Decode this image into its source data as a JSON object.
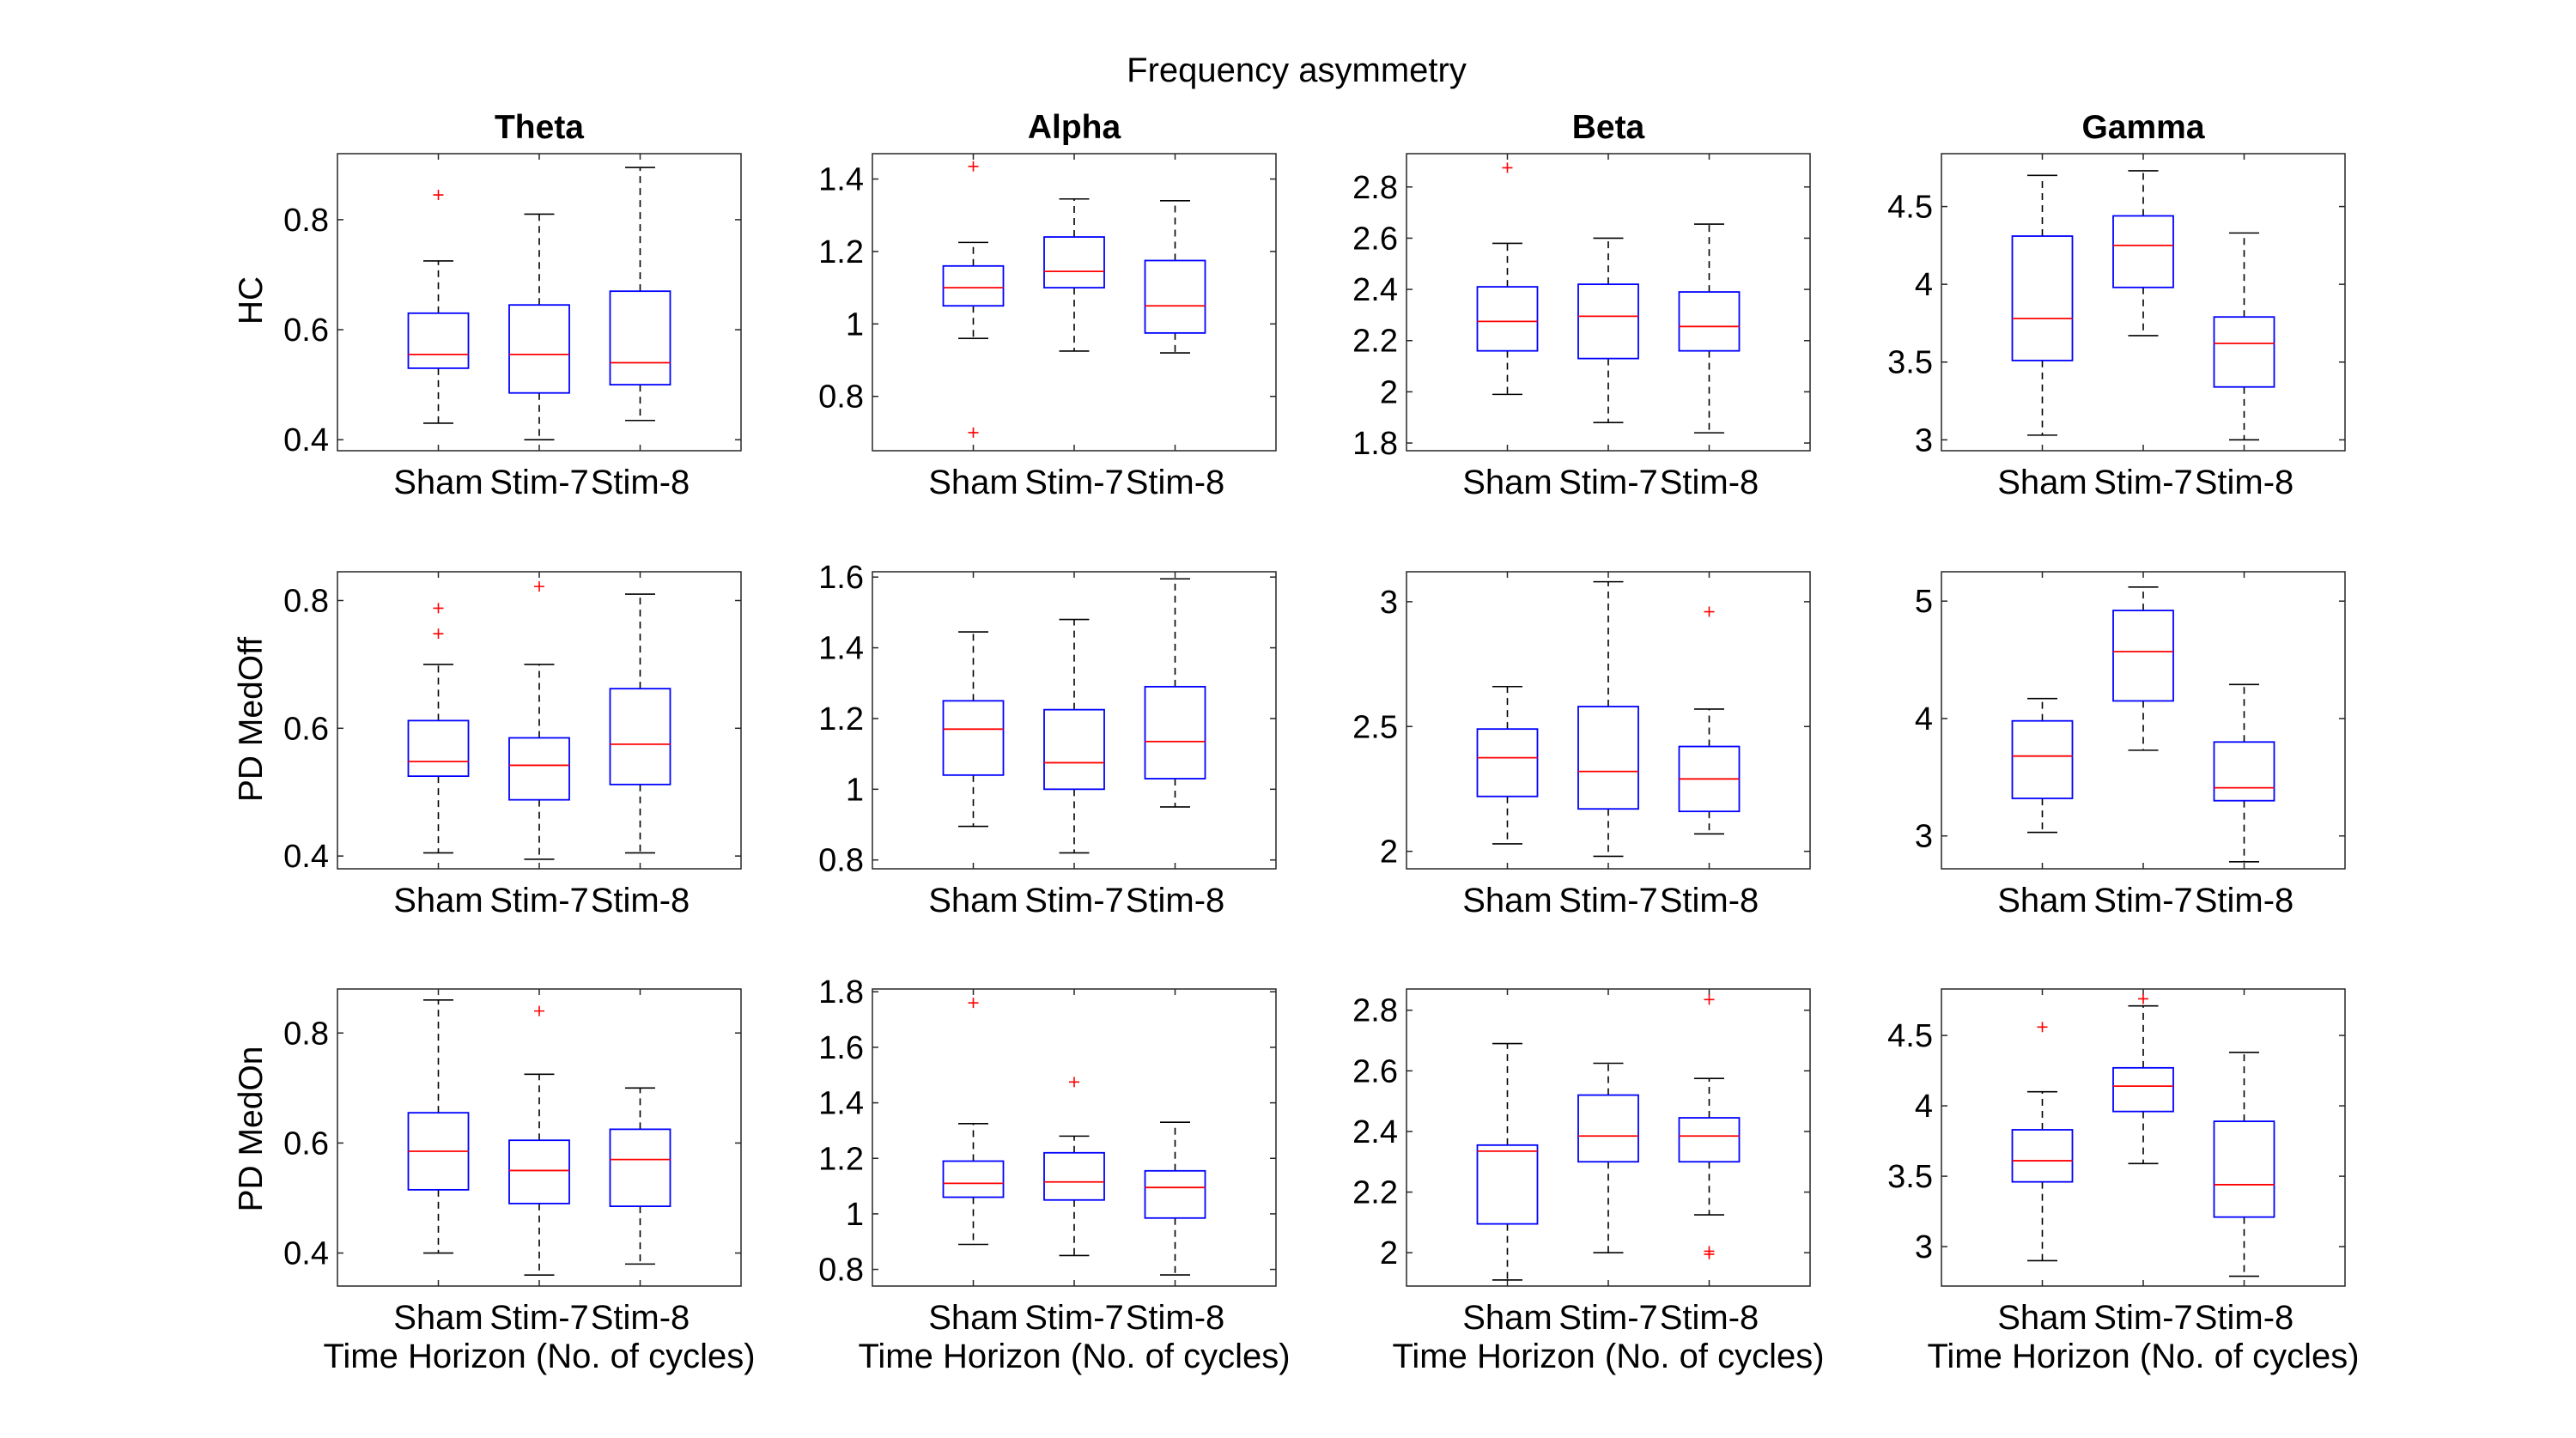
{
  "chart_data": {
    "type": "box",
    "title": "Frequency asymmetry",
    "xlabel": "Time Horizon (No. of cycles)",
    "categories": [
      "Sham",
      "Stim-7",
      "Stim-8"
    ],
    "columns": [
      "Theta",
      "Alpha",
      "Beta",
      "Gamma"
    ],
    "rows": [
      "HC",
      "PD MedOff",
      "PD MedOn"
    ],
    "colors": {
      "box": "#0000ff",
      "median": "#ff0000",
      "whisker": "#000000",
      "outlier": "#ff0000",
      "axes": "#262626"
    },
    "panels": [
      {
        "row": 0,
        "col": 0,
        "ylim": [
          0.38,
          0.92
        ],
        "yticks": [
          0.4,
          0.6,
          0.8
        ],
        "ytick_labels": [
          "0.4",
          "0.6",
          "0.8"
        ],
        "boxes": [
          {
            "category": "Sham",
            "whisker_low": 0.43,
            "q1": 0.53,
            "median": 0.555,
            "q3": 0.63,
            "whisker_high": 0.725,
            "outliers": [
              0.845
            ]
          },
          {
            "category": "Stim-7",
            "whisker_low": 0.4,
            "q1": 0.485,
            "median": 0.555,
            "q3": 0.645,
            "whisker_high": 0.81,
            "outliers": []
          },
          {
            "category": "Stim-8",
            "whisker_low": 0.435,
            "q1": 0.5,
            "median": 0.54,
            "q3": 0.67,
            "whisker_high": 0.895,
            "outliers": []
          }
        ]
      },
      {
        "row": 0,
        "col": 1,
        "ylim": [
          0.65,
          1.47
        ],
        "yticks": [
          0.8,
          1.0,
          1.2,
          1.4
        ],
        "ytick_labels": [
          "0.8",
          "1",
          "1.2",
          "1.4"
        ],
        "boxes": [
          {
            "category": "Sham",
            "whisker_low": 0.96,
            "q1": 1.05,
            "median": 1.1,
            "q3": 1.16,
            "whisker_high": 1.225,
            "outliers": [
              1.435,
              0.7
            ]
          },
          {
            "category": "Stim-7",
            "whisker_low": 0.925,
            "q1": 1.1,
            "median": 1.145,
            "q3": 1.24,
            "whisker_high": 1.345,
            "outliers": []
          },
          {
            "category": "Stim-8",
            "whisker_low": 0.92,
            "q1": 0.975,
            "median": 1.05,
            "q3": 1.175,
            "whisker_high": 1.34,
            "outliers": []
          }
        ]
      },
      {
        "row": 0,
        "col": 2,
        "ylim": [
          1.77,
          2.93
        ],
        "yticks": [
          1.8,
          2.0,
          2.2,
          2.4,
          2.6,
          2.8
        ],
        "ytick_labels": [
          "1.8",
          "2",
          "2.2",
          "2.4",
          "2.6",
          "2.8"
        ],
        "boxes": [
          {
            "category": "Sham",
            "whisker_low": 1.99,
            "q1": 2.16,
            "median": 2.275,
            "q3": 2.41,
            "whisker_high": 2.58,
            "outliers": [
              2.875
            ]
          },
          {
            "category": "Stim-7",
            "whisker_low": 1.88,
            "q1": 2.13,
            "median": 2.295,
            "q3": 2.42,
            "whisker_high": 2.6,
            "outliers": []
          },
          {
            "category": "Stim-8",
            "whisker_low": 1.84,
            "q1": 2.16,
            "median": 2.255,
            "q3": 2.39,
            "whisker_high": 2.655,
            "outliers": []
          }
        ]
      },
      {
        "row": 0,
        "col": 3,
        "ylim": [
          2.93,
          4.84
        ],
        "yticks": [
          3.0,
          3.5,
          4.0,
          4.5
        ],
        "ytick_labels": [
          "3",
          "3.5",
          "4",
          "4.5"
        ],
        "boxes": [
          {
            "category": "Sham",
            "whisker_low": 3.03,
            "q1": 3.51,
            "median": 3.78,
            "q3": 4.31,
            "whisker_high": 4.7,
            "outliers": []
          },
          {
            "category": "Stim-7",
            "whisker_low": 3.67,
            "q1": 3.98,
            "median": 4.25,
            "q3": 4.44,
            "whisker_high": 4.73,
            "outliers": []
          },
          {
            "category": "Stim-8",
            "whisker_low": 3.0,
            "q1": 3.34,
            "median": 3.62,
            "q3": 3.79,
            "whisker_high": 4.33,
            "outliers": []
          }
        ]
      },
      {
        "row": 1,
        "col": 0,
        "ylim": [
          0.38,
          0.845
        ],
        "yticks": [
          0.4,
          0.6,
          0.8
        ],
        "ytick_labels": [
          "0.4",
          "0.6",
          "0.8"
        ],
        "boxes": [
          {
            "category": "Sham",
            "whisker_low": 0.405,
            "q1": 0.525,
            "median": 0.548,
            "q3": 0.612,
            "whisker_high": 0.7,
            "outliers": [
              0.788,
              0.748
            ]
          },
          {
            "category": "Stim-7",
            "whisker_low": 0.395,
            "q1": 0.488,
            "median": 0.542,
            "q3": 0.585,
            "whisker_high": 0.7,
            "outliers": [
              0.822
            ]
          },
          {
            "category": "Stim-8",
            "whisker_low": 0.405,
            "q1": 0.512,
            "median": 0.575,
            "q3": 0.662,
            "whisker_high": 0.81,
            "outliers": []
          }
        ]
      },
      {
        "row": 1,
        "col": 1,
        "ylim": [
          0.775,
          1.615
        ],
        "yticks": [
          0.8,
          1.0,
          1.2,
          1.4,
          1.6
        ],
        "ytick_labels": [
          "0.8",
          "1",
          "1.2",
          "1.4",
          "1.6"
        ],
        "boxes": [
          {
            "category": "Sham",
            "whisker_low": 0.895,
            "q1": 1.04,
            "median": 1.17,
            "q3": 1.25,
            "whisker_high": 1.445,
            "outliers": []
          },
          {
            "category": "Stim-7",
            "whisker_low": 0.82,
            "q1": 1.0,
            "median": 1.075,
            "q3": 1.225,
            "whisker_high": 1.48,
            "outliers": []
          },
          {
            "category": "Stim-8",
            "whisker_low": 0.95,
            "q1": 1.03,
            "median": 1.135,
            "q3": 1.29,
            "whisker_high": 1.595,
            "outliers": []
          }
        ]
      },
      {
        "row": 1,
        "col": 2,
        "ylim": [
          1.93,
          3.12
        ],
        "yticks": [
          2.0,
          2.5,
          3.0
        ],
        "ytick_labels": [
          "2",
          "2.5",
          "3"
        ],
        "boxes": [
          {
            "category": "Sham",
            "whisker_low": 2.03,
            "q1": 2.22,
            "median": 2.375,
            "q3": 2.49,
            "whisker_high": 2.66,
            "outliers": []
          },
          {
            "category": "Stim-7",
            "whisker_low": 1.98,
            "q1": 2.17,
            "median": 2.32,
            "q3": 2.58,
            "whisker_high": 3.08,
            "outliers": []
          },
          {
            "category": "Stim-8",
            "whisker_low": 2.07,
            "q1": 2.16,
            "median": 2.29,
            "q3": 2.42,
            "whisker_high": 2.57,
            "outliers": [
              2.96
            ]
          }
        ]
      },
      {
        "row": 1,
        "col": 3,
        "ylim": [
          2.72,
          5.25
        ],
        "yticks": [
          3,
          4,
          5
        ],
        "ytick_labels": [
          "3",
          "4",
          "5"
        ],
        "boxes": [
          {
            "category": "Sham",
            "whisker_low": 3.03,
            "q1": 3.32,
            "median": 3.68,
            "q3": 3.98,
            "whisker_high": 4.17,
            "outliers": []
          },
          {
            "category": "Stim-7",
            "whisker_low": 3.73,
            "q1": 4.15,
            "median": 4.57,
            "q3": 4.92,
            "whisker_high": 5.12,
            "outliers": []
          },
          {
            "category": "Stim-8",
            "whisker_low": 2.78,
            "q1": 3.3,
            "median": 3.41,
            "q3": 3.8,
            "whisker_high": 4.29,
            "outliers": []
          }
        ]
      },
      {
        "row": 2,
        "col": 0,
        "ylim": [
          0.34,
          0.88
        ],
        "yticks": [
          0.4,
          0.6,
          0.8
        ],
        "ytick_labels": [
          "0.4",
          "0.6",
          "0.8"
        ],
        "boxes": [
          {
            "category": "Sham",
            "whisker_low": 0.4,
            "q1": 0.515,
            "median": 0.585,
            "q3": 0.655,
            "whisker_high": 0.86,
            "outliers": []
          },
          {
            "category": "Stim-7",
            "whisker_low": 0.36,
            "q1": 0.49,
            "median": 0.55,
            "q3": 0.605,
            "whisker_high": 0.725,
            "outliers": [
              0.84
            ]
          },
          {
            "category": "Stim-8",
            "whisker_low": 0.38,
            "q1": 0.485,
            "median": 0.57,
            "q3": 0.625,
            "whisker_high": 0.7,
            "outliers": []
          }
        ]
      },
      {
        "row": 2,
        "col": 1,
        "ylim": [
          0.74,
          1.81
        ],
        "yticks": [
          0.8,
          1.0,
          1.2,
          1.4,
          1.6,
          1.8
        ],
        "ytick_labels": [
          "0.8",
          "1",
          "1.2",
          "1.4",
          "1.6",
          "1.8"
        ],
        "boxes": [
          {
            "category": "Sham",
            "whisker_low": 0.89,
            "q1": 1.06,
            "median": 1.11,
            "q3": 1.19,
            "whisker_high": 1.325,
            "outliers": [
              1.76
            ]
          },
          {
            "category": "Stim-7",
            "whisker_low": 0.85,
            "q1": 1.05,
            "median": 1.115,
            "q3": 1.22,
            "whisker_high": 1.28,
            "outliers": [
              1.475
            ]
          },
          {
            "category": "Stim-8",
            "whisker_low": 0.78,
            "q1": 0.985,
            "median": 1.095,
            "q3": 1.155,
            "whisker_high": 1.33,
            "outliers": []
          }
        ]
      },
      {
        "row": 2,
        "col": 2,
        "ylim": [
          1.89,
          2.87
        ],
        "yticks": [
          2.0,
          2.2,
          2.4,
          2.6,
          2.8
        ],
        "ytick_labels": [
          "2",
          "2.2",
          "2.4",
          "2.6",
          "2.8"
        ],
        "boxes": [
          {
            "category": "Sham",
            "whisker_low": 1.91,
            "q1": 2.095,
            "median": 2.335,
            "q3": 2.355,
            "whisker_high": 2.69,
            "outliers": []
          },
          {
            "category": "Stim-7",
            "whisker_low": 2.0,
            "q1": 2.3,
            "median": 2.385,
            "q3": 2.52,
            "whisker_high": 2.625,
            "outliers": []
          },
          {
            "category": "Stim-8",
            "whisker_low": 2.125,
            "q1": 2.3,
            "median": 2.385,
            "q3": 2.445,
            "whisker_high": 2.575,
            "outliers": [
              2.835,
              2.005,
              1.995
            ]
          }
        ]
      },
      {
        "row": 2,
        "col": 3,
        "ylim": [
          2.72,
          4.83
        ],
        "yticks": [
          3.0,
          3.5,
          4.0,
          4.5
        ],
        "ytick_labels": [
          "3",
          "3.5",
          "4",
          "4.5"
        ],
        "boxes": [
          {
            "category": "Sham",
            "whisker_low": 2.9,
            "q1": 3.46,
            "median": 3.61,
            "q3": 3.83,
            "whisker_high": 4.1,
            "outliers": [
              4.56
            ]
          },
          {
            "category": "Stim-7",
            "whisker_low": 3.59,
            "q1": 3.96,
            "median": 4.14,
            "q3": 4.27,
            "whisker_high": 4.71,
            "outliers": [
              4.76
            ]
          },
          {
            "category": "Stim-8",
            "whisker_low": 2.79,
            "q1": 3.21,
            "median": 3.44,
            "q3": 3.89,
            "whisker_high": 4.38,
            "outliers": []
          }
        ]
      }
    ]
  }
}
